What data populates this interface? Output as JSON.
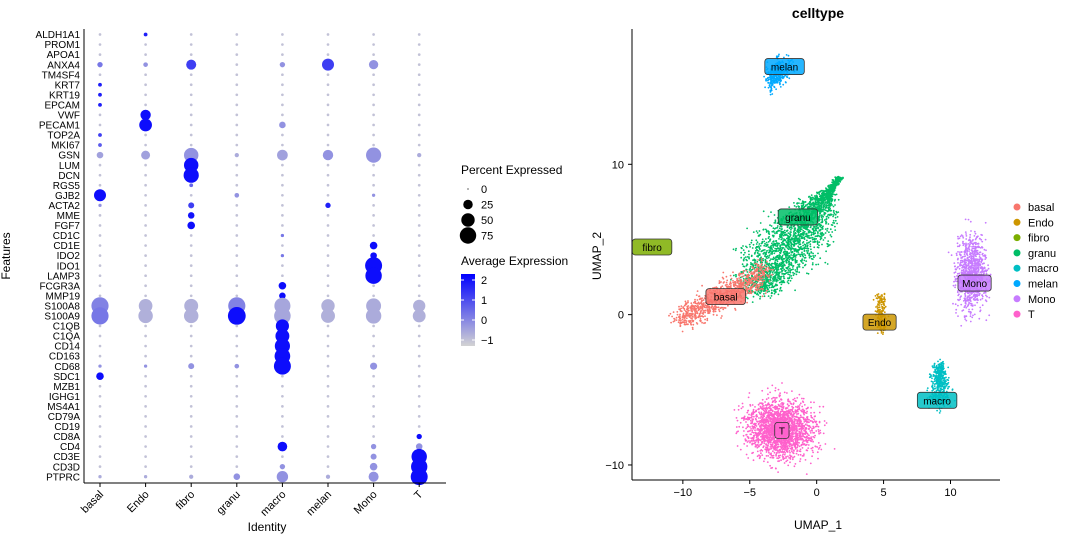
{
  "chart_data": [
    {
      "type": "scatter",
      "subtype": "dot-plot",
      "xlabel": "Identity",
      "ylabel": "Features",
      "categories": [
        "basal",
        "Endo",
        "fibro",
        "granu",
        "macro",
        "melan",
        "Mono",
        "T"
      ],
      "features": [
        "ALDH1A1",
        "PROM1",
        "APOA1",
        "ANXA4",
        "TM4SF4",
        "KRT7",
        "KRT19",
        "EPCAM",
        "VWF",
        "PECAM1",
        "TOP2A",
        "MKI67",
        "GSN",
        "LUM",
        "DCN",
        "RGS5",
        "GJB2",
        "ACTA2",
        "MME",
        "FGF7",
        "CD1C",
        "CD1E",
        "IDO2",
        "IDO1",
        "LAMP3",
        "FCGR3A",
        "MMP19",
        "S100A8",
        "S100A9",
        "C1QB",
        "C1QA",
        "CD14",
        "CD163",
        "CD68",
        "SDC1",
        "MZB1",
        "IGHG1",
        "MS4A1",
        "CD79A",
        "CD19",
        "CD8A",
        "CD4",
        "CD3E",
        "CD3D",
        "PTPRC"
      ],
      "pct_scale_range": [
        0,
        90
      ],
      "expr_scale_range": [
        -1.5,
        2.5
      ],
      "default_pct": 2,
      "default_expr": -1,
      "dots": [
        {
          "feature": "ALDH1A1",
          "cluster": "Endo",
          "pct": 4,
          "expr": 2
        },
        {
          "feature": "ANXA4",
          "cluster": "basal",
          "pct": 8,
          "expr": 0.5
        },
        {
          "feature": "ANXA4",
          "cluster": "Endo",
          "pct": 6,
          "expr": 0
        },
        {
          "feature": "ANXA4",
          "cluster": "fibro",
          "pct": 28,
          "expr": 1.5
        },
        {
          "feature": "ANXA4",
          "cluster": "macro",
          "pct": 8,
          "expr": 0
        },
        {
          "feature": "ANXA4",
          "cluster": "melan",
          "pct": 40,
          "expr": 1.5
        },
        {
          "feature": "ANXA4",
          "cluster": "Mono",
          "pct": 24,
          "expr": 0
        },
        {
          "feature": "KRT7",
          "cluster": "basal",
          "pct": 4,
          "expr": 2
        },
        {
          "feature": "KRT19",
          "cluster": "basal",
          "pct": 4,
          "expr": 2
        },
        {
          "feature": "EPCAM",
          "cluster": "basal",
          "pct": 4,
          "expr": 2
        },
        {
          "feature": "VWF",
          "cluster": "Endo",
          "pct": 30,
          "expr": 2.3
        },
        {
          "feature": "PECAM1",
          "cluster": "Endo",
          "pct": 45,
          "expr": 2.3
        },
        {
          "feature": "PECAM1",
          "cluster": "macro",
          "pct": 12,
          "expr": 0
        },
        {
          "feature": "TOP2A",
          "cluster": "basal",
          "pct": 4,
          "expr": 1.5
        },
        {
          "feature": "MKI67",
          "cluster": "basal",
          "pct": 4,
          "expr": 1
        },
        {
          "feature": "GSN",
          "cluster": "basal",
          "pct": 12,
          "expr": -0.3
        },
        {
          "feature": "GSN",
          "cluster": "Endo",
          "pct": 22,
          "expr": -0.3
        },
        {
          "feature": "GSN",
          "cluster": "fibro",
          "pct": 58,
          "expr": 0
        },
        {
          "feature": "GSN",
          "cluster": "granu",
          "pct": 5,
          "expr": -0.5
        },
        {
          "feature": "GSN",
          "cluster": "macro",
          "pct": 32,
          "expr": -0.3
        },
        {
          "feature": "GSN",
          "cluster": "melan",
          "pct": 30,
          "expr": 0
        },
        {
          "feature": "GSN",
          "cluster": "Mono",
          "pct": 64,
          "expr": 0
        },
        {
          "feature": "GSN",
          "cluster": "T",
          "pct": 5,
          "expr": -0.5
        },
        {
          "feature": "LUM",
          "cluster": "fibro",
          "pct": 58,
          "expr": 2.3
        },
        {
          "feature": "DCN",
          "cluster": "fibro",
          "pct": 64,
          "expr": 2.3
        },
        {
          "feature": "RGS5",
          "cluster": "fibro",
          "pct": 4,
          "expr": 0.8
        },
        {
          "feature": "GJB2",
          "cluster": "basal",
          "pct": 40,
          "expr": 2.3
        },
        {
          "feature": "GJB2",
          "cluster": "granu",
          "pct": 6,
          "expr": 0
        },
        {
          "feature": "GJB2",
          "cluster": "Mono",
          "pct": 3,
          "expr": 0
        },
        {
          "feature": "ACTA2",
          "cluster": "basal",
          "pct": 3,
          "expr": 0
        },
        {
          "feature": "ACTA2",
          "cluster": "fibro",
          "pct": 10,
          "expr": 1.5
        },
        {
          "feature": "ACTA2",
          "cluster": "melan",
          "pct": 8,
          "expr": 2
        },
        {
          "feature": "MME",
          "cluster": "fibro",
          "pct": 12,
          "expr": 2.2
        },
        {
          "feature": "FGF7",
          "cluster": "fibro",
          "pct": 16,
          "expr": 2.3
        },
        {
          "feature": "CD1C",
          "cluster": "macro",
          "pct": 3,
          "expr": 0.5
        },
        {
          "feature": "CD1E",
          "cluster": "Mono",
          "pct": 16,
          "expr": 2.3
        },
        {
          "feature": "IDO2",
          "cluster": "Mono",
          "pct": 12,
          "expr": 2.3
        },
        {
          "feature": "IDO2",
          "cluster": "macro",
          "pct": 3,
          "expr": 0.5
        },
        {
          "feature": "IDO1",
          "cluster": "Mono",
          "pct": 80,
          "expr": 2.3
        },
        {
          "feature": "LAMP3",
          "cluster": "Mono",
          "pct": 75,
          "expr": 2.3
        },
        {
          "feature": "FCGR3A",
          "cluster": "macro",
          "pct": 16,
          "expr": 2.3
        },
        {
          "feature": "MMP19",
          "cluster": "macro",
          "pct": 12,
          "expr": 2.3
        },
        {
          "feature": "S100A8",
          "cluster": "basal",
          "pct": 82,
          "expr": 0.3
        },
        {
          "feature": "S100A8",
          "cluster": "Endo",
          "pct": 52,
          "expr": -0.6
        },
        {
          "feature": "S100A8",
          "cluster": "fibro",
          "pct": 54,
          "expr": -0.6
        },
        {
          "feature": "S100A8",
          "cluster": "granu",
          "pct": 82,
          "expr": 0.3
        },
        {
          "feature": "S100A8",
          "cluster": "macro",
          "pct": 72,
          "expr": -0.4
        },
        {
          "feature": "S100A8",
          "cluster": "melan",
          "pct": 50,
          "expr": -0.6
        },
        {
          "feature": "S100A8",
          "cluster": "Mono",
          "pct": 62,
          "expr": -0.5
        },
        {
          "feature": "S100A8",
          "cluster": "T",
          "pct": 42,
          "expr": -0.6
        },
        {
          "feature": "S100A9",
          "cluster": "basal",
          "pct": 82,
          "expr": 0.5
        },
        {
          "feature": "S100A9",
          "cluster": "Endo",
          "pct": 58,
          "expr": -0.6
        },
        {
          "feature": "S100A9",
          "cluster": "fibro",
          "pct": 58,
          "expr": -0.6
        },
        {
          "feature": "S100A9",
          "cluster": "granu",
          "pct": 88,
          "expr": 2.3
        },
        {
          "feature": "S100A9",
          "cluster": "macro",
          "pct": 76,
          "expr": -0.4
        },
        {
          "feature": "S100A9",
          "cluster": "melan",
          "pct": 54,
          "expr": -0.6
        },
        {
          "feature": "S100A9",
          "cluster": "Mono",
          "pct": 66,
          "expr": -0.5
        },
        {
          "feature": "S100A9",
          "cluster": "T",
          "pct": 46,
          "expr": -0.6
        },
        {
          "feature": "C1QB",
          "cluster": "macro",
          "pct": 48,
          "expr": 2.3
        },
        {
          "feature": "C1QA",
          "cluster": "macro",
          "pct": 54,
          "expr": 2.3
        },
        {
          "feature": "CD14",
          "cluster": "macro",
          "pct": 64,
          "expr": 2.3
        },
        {
          "feature": "CD163",
          "cluster": "macro",
          "pct": 68,
          "expr": 2.3
        },
        {
          "feature": "CD68",
          "cluster": "basal",
          "pct": 3,
          "expr": 0
        },
        {
          "feature": "CD68",
          "cluster": "Endo",
          "pct": 3,
          "expr": 0
        },
        {
          "feature": "CD68",
          "cluster": "fibro",
          "pct": 10,
          "expr": 0
        },
        {
          "feature": "CD68",
          "cluster": "granu",
          "pct": 6,
          "expr": 0
        },
        {
          "feature": "CD68",
          "cluster": "macro",
          "pct": 80,
          "expr": 2.3
        },
        {
          "feature": "CD68",
          "cluster": "Mono",
          "pct": 14,
          "expr": 0
        },
        {
          "feature": "SDC1",
          "cluster": "basal",
          "pct": 16,
          "expr": 2.3
        },
        {
          "feature": "CD8A",
          "cluster": "T",
          "pct": 8,
          "expr": 2.3
        },
        {
          "feature": "CD4",
          "cluster": "macro",
          "pct": 26,
          "expr": 2.3
        },
        {
          "feature": "CD4",
          "cluster": "Mono",
          "pct": 8,
          "expr": 0
        },
        {
          "feature": "CD4",
          "cluster": "T",
          "pct": 12,
          "expr": 0
        },
        {
          "feature": "CD3E",
          "cluster": "Mono",
          "pct": 10,
          "expr": 0
        },
        {
          "feature": "CD3E",
          "cluster": "T",
          "pct": 66,
          "expr": 2.3
        },
        {
          "feature": "CD3D",
          "cluster": "macro",
          "pct": 8,
          "expr": 0
        },
        {
          "feature": "CD3D",
          "cluster": "Mono",
          "pct": 16,
          "expr": 0
        },
        {
          "feature": "CD3D",
          "cluster": "T",
          "pct": 74,
          "expr": 2.3
        },
        {
          "feature": "PTPRC",
          "cluster": "basal",
          "pct": 3,
          "expr": -0.5
        },
        {
          "feature": "PTPRC",
          "cluster": "Endo",
          "pct": 3,
          "expr": -0.5
        },
        {
          "feature": "PTPRC",
          "cluster": "fibro",
          "pct": 5,
          "expr": -0.5
        },
        {
          "feature": "PTPRC",
          "cluster": "granu",
          "pct": 12,
          "expr": 0
        },
        {
          "feature": "PTPRC",
          "cluster": "macro",
          "pct": 36,
          "expr": 0
        },
        {
          "feature": "PTPRC",
          "cluster": "melan",
          "pct": 5,
          "expr": -0.5
        },
        {
          "feature": "PTPRC",
          "cluster": "Mono",
          "pct": 28,
          "expr": 0
        },
        {
          "feature": "PTPRC",
          "cluster": "T",
          "pct": 80,
          "expr": 2.3
        }
      ],
      "legend_size": {
        "title": "Percent Expressed",
        "values": [
          0,
          25,
          50,
          75
        ]
      },
      "legend_color": {
        "title": "Average Expression",
        "ticks": [
          2,
          1,
          0,
          -1
        ],
        "low_color": "#d3d3d3",
        "high_color": "#0000ff"
      },
      "xtick_labels": [
        "basal",
        "Endo",
        "fibro",
        "granu",
        "macro",
        "melan",
        "Mono",
        "T"
      ]
    },
    {
      "type": "scatter",
      "subtype": "umap",
      "title": "celltype",
      "xlabel": "UMAP_1",
      "ylabel": "UMAP_2",
      "xlim": [
        -13.8,
        13.7
      ],
      "ylim": [
        -11,
        19
      ],
      "xticks": [
        -10,
        -5,
        0,
        5,
        10
      ],
      "yticks": [
        -10,
        0,
        10
      ],
      "xtick_labels": [
        "−10",
        "−5",
        "0",
        "5",
        "10"
      ],
      "ytick_labels": [
        "−10",
        "0",
        "10"
      ],
      "legend_position": "right",
      "clusters": [
        {
          "name": "basal",
          "color": "#F8766D",
          "label_x": -6.8,
          "label_y": 1.2
        },
        {
          "name": "Endo",
          "color": "#CD9600",
          "label_x": 4.7,
          "label_y": -0.5
        },
        {
          "name": "fibro",
          "color": "#7CAE00",
          "label_x": -12.3,
          "label_y": 4.5
        },
        {
          "name": "granu",
          "color": "#00BE67",
          "label_x": -1.4,
          "label_y": 6.5
        },
        {
          "name": "macro",
          "color": "#00BFC4",
          "label_x": 9.0,
          "label_y": -5.7
        },
        {
          "name": "melan",
          "color": "#00A9FF",
          "label_x": -2.4,
          "label_y": 16.5
        },
        {
          "name": "Mono",
          "color": "#C77CFF",
          "label_x": 11.8,
          "label_y": 2.1
        },
        {
          "name": "T",
          "color": "#FF61CC",
          "label_x": -2.6,
          "label_y": -7.7
        }
      ],
      "legend_entries": [
        "basal",
        "Endo",
        "fibro",
        "granu",
        "macro",
        "melan",
        "Mono",
        "T"
      ]
    }
  ]
}
